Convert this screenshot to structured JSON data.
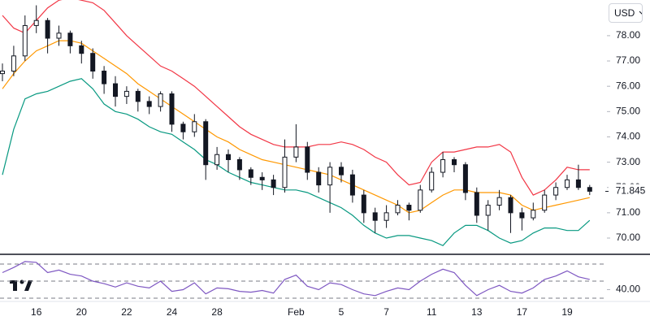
{
  "chart_data": [
    {
      "type": "candlestick",
      "categories": [
        null,
        null,
        null,
        "16",
        null,
        null,
        null,
        "20",
        null,
        null,
        null,
        "22",
        null,
        null,
        null,
        "24",
        null,
        null,
        null,
        "28",
        null,
        null,
        null,
        null,
        null,
        null,
        "Feb",
        null,
        null,
        null,
        "5",
        null,
        null,
        null,
        "7",
        null,
        null,
        null,
        "11",
        null,
        null,
        null,
        "13",
        null,
        null,
        null,
        "17",
        null,
        null,
        null,
        "19",
        null,
        null
      ],
      "open": [
        76.5,
        76.6,
        77.2,
        78.4,
        78.6,
        77.9,
        78.1,
        77.6,
        77.3,
        76.6,
        76.1,
        75.6,
        75.8,
        75.4,
        75.2,
        75.7,
        74.5,
        74.2,
        74.6,
        72.9,
        73.3,
        73.1,
        72.7,
        72.4,
        72.3,
        72.0,
        73.2,
        73.6,
        72.6,
        72.1,
        72.8,
        72.5,
        71.7,
        71.0,
        70.7,
        71.0,
        71.3,
        71.1,
        71.9,
        72.6,
        73.1,
        72.9,
        71.8,
        70.9,
        71.3,
        71.6,
        71.0,
        70.8,
        71.1,
        71.7,
        72.0,
        72.3,
        72.0
      ],
      "high": [
        76.9,
        77.6,
        78.8,
        79.2,
        78.7,
        78.4,
        78.2,
        77.8,
        77.5,
        76.8,
        76.4,
        76.0,
        75.9,
        75.6,
        75.8,
        75.8,
        74.6,
        74.9,
        74.7,
        73.6,
        73.5,
        73.2,
        72.8,
        72.6,
        72.5,
        73.9,
        74.5,
        73.8,
        72.8,
        73.0,
        73.0,
        72.7,
        71.9,
        71.2,
        71.3,
        71.5,
        71.4,
        72.1,
        72.8,
        73.4,
        73.2,
        73.0,
        72.0,
        71.5,
        71.9,
        71.7,
        71.2,
        71.4,
        71.9,
        72.2,
        72.5,
        72.9,
        72.1
      ],
      "low": [
        76.2,
        76.4,
        77.0,
        78.1,
        77.3,
        77.6,
        77.3,
        76.9,
        76.3,
        75.7,
        75.2,
        75.3,
        75.0,
        74.9,
        75.0,
        74.2,
        73.9,
        74.0,
        72.3,
        72.7,
        72.6,
        72.3,
        72.1,
        71.9,
        71.7,
        71.8,
        73.0,
        72.3,
        71.8,
        71.0,
        72.2,
        71.4,
        70.6,
        70.2,
        70.4,
        70.9,
        70.7,
        71.0,
        71.8,
        72.4,
        72.6,
        71.5,
        70.6,
        70.3,
        71.1,
        70.2,
        70.3,
        70.7,
        71.0,
        71.5,
        71.9,
        71.9,
        71.7
      ],
      "close": [
        76.6,
        77.2,
        78.4,
        78.6,
        77.9,
        78.1,
        77.6,
        77.3,
        76.6,
        76.1,
        75.6,
        75.8,
        75.4,
        75.2,
        75.7,
        74.5,
        74.2,
        74.6,
        72.9,
        73.3,
        73.1,
        72.7,
        72.4,
        72.3,
        72.0,
        73.2,
        73.6,
        72.6,
        72.1,
        72.8,
        72.5,
        71.7,
        71.0,
        70.7,
        71.0,
        71.3,
        71.1,
        71.9,
        72.6,
        73.1,
        72.9,
        71.8,
        70.9,
        71.3,
        71.6,
        71.0,
        70.8,
        71.1,
        71.7,
        72.0,
        72.3,
        72.0,
        71.85
      ],
      "up_color": "#ffffff",
      "down_color": "#131722",
      "series": [
        {
          "color": "#f23645",
          "values": [
            78.8,
            78.3,
            78.1,
            78.6,
            79.1,
            79.4,
            79.5,
            79.4,
            79.3,
            79.0,
            78.5,
            78.0,
            77.6,
            77.2,
            76.8,
            76.6,
            76.3,
            76.0,
            75.6,
            75.2,
            74.8,
            74.4,
            74.1,
            73.9,
            73.7,
            73.6,
            73.6,
            73.6,
            73.7,
            73.7,
            73.8,
            73.7,
            73.5,
            73.2,
            73.0,
            72.5,
            72.1,
            72.2,
            73.0,
            73.4,
            73.4,
            73.5,
            73.6,
            73.6,
            73.7,
            73.4,
            72.4,
            71.7,
            71.9,
            72.3,
            72.8,
            72.7,
            72.7
          ]
        },
        {
          "color": "#ff9800",
          "values": [
            75.9,
            76.5,
            77.0,
            77.4,
            77.6,
            77.8,
            77.8,
            77.7,
            77.4,
            77.1,
            76.8,
            76.5,
            76.1,
            75.8,
            75.5,
            75.2,
            74.9,
            74.6,
            74.3,
            74.0,
            73.8,
            73.5,
            73.3,
            73.1,
            73.0,
            72.9,
            72.8,
            72.7,
            72.6,
            72.5,
            72.3,
            72.1,
            71.9,
            71.7,
            71.5,
            71.3,
            71.0,
            71.1,
            71.4,
            71.7,
            71.9,
            71.9,
            71.8,
            71.8,
            71.8,
            71.7,
            71.3,
            71.1,
            71.2,
            71.3,
            71.4,
            71.5,
            71.6
          ]
        },
        {
          "color": "#089981",
          "values": [
            72.5,
            74.3,
            75.5,
            75.7,
            75.8,
            76.0,
            76.2,
            76.3,
            75.9,
            75.3,
            75.0,
            74.9,
            74.7,
            74.4,
            74.2,
            74.1,
            73.8,
            73.5,
            73.1,
            72.9,
            72.6,
            72.4,
            72.2,
            72.1,
            72.0,
            71.9,
            71.9,
            71.8,
            71.6,
            71.4,
            71.2,
            70.9,
            70.5,
            70.2,
            70.0,
            70.1,
            70.1,
            70.0,
            69.9,
            69.7,
            70.2,
            70.5,
            70.5,
            70.3,
            70.0,
            69.8,
            69.9,
            70.2,
            70.4,
            70.4,
            70.3,
            70.3,
            70.7
          ]
        }
      ],
      "ylim": [
        69.39,
        79.41
      ],
      "yticks": [
        {
          "value": 70,
          "label": "70.00"
        },
        {
          "value": 71,
          "label": "71.00"
        },
        {
          "value": 72,
          "label": "72.00"
        },
        {
          "value": 73,
          "label": "73.00"
        },
        {
          "value": 74,
          "label": "74.00"
        },
        {
          "value": 75,
          "label": "75.00"
        },
        {
          "value": 76,
          "label": "76.00"
        },
        {
          "value": 77,
          "label": "77.00"
        },
        {
          "value": 78,
          "label": "78.00"
        }
      ],
      "last_value": 71.845,
      "currency": "USD"
    },
    {
      "type": "line",
      "series": [
        {
          "color": "#7e57c2",
          "values": [
            60,
            66,
            73,
            72,
            60,
            63,
            58,
            56,
            50,
            47,
            43,
            48,
            44,
            42,
            50,
            38,
            40,
            48,
            35,
            42,
            41,
            38,
            37,
            39,
            36,
            52,
            57,
            44,
            40,
            48,
            46,
            40,
            35,
            33,
            38,
            42,
            40,
            50,
            58,
            64,
            60,
            45,
            33,
            40,
            45,
            38,
            36,
            42,
            52,
            56,
            62,
            55,
            52
          ]
        }
      ],
      "ylim": [
        27.1,
        78.6
      ],
      "yticks": [
        {
          "value": 40,
          "label": "40.00"
        }
      ],
      "levels": [
        70,
        50,
        30
      ]
    }
  ]
}
